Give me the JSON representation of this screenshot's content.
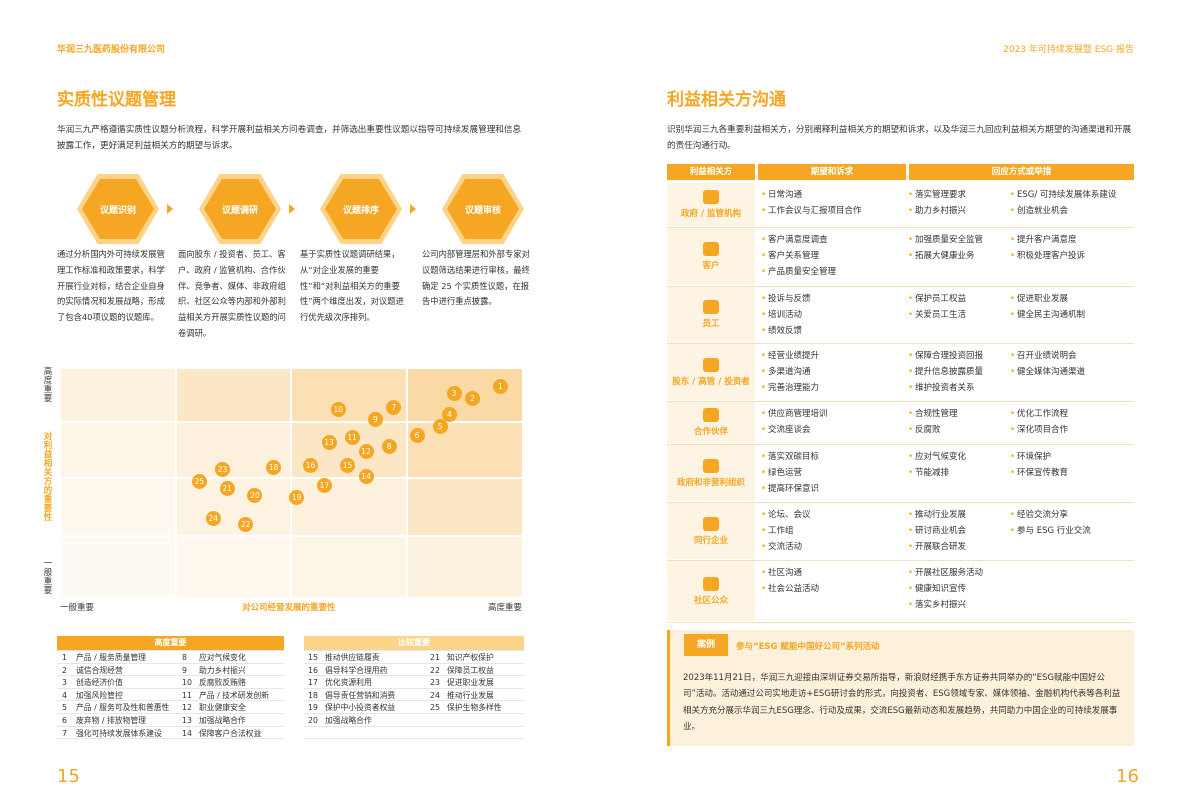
{
  "header": {
    "company": "华润三九医药股份有限公司",
    "report": "2023 年可持续发展暨 ESG 报告"
  },
  "left": {
    "title": "实质性议题管理",
    "intro": "华润三九严格遵循实质性议题分析流程，科学开展利益相关方问卷调查，并筛选出重要性议题以指导可持续发展管理和信息披露工作，更好满足利益相关方的期望与诉求。",
    "steps": [
      {
        "label": "议题识别",
        "desc": "通过分析国内外可持续发展管理工作标准和政策要求，科学开展行业对标，结合企业自身的实际情况和发展战略，形成了包含40项议题的议题库。"
      },
      {
        "label": "议题调研",
        "desc": "面向股东 / 投资者、员工、客户、政府 / 监管机构、合作伙伴、竞争者、媒体、非政府组织、社区公众等内部和外部利益相关方开展实质性议题的问卷调研。"
      },
      {
        "label": "议题排序",
        "desc": "基于实质性议题调研结果，从“对企业发展的重要性”和“对利益相关方的重要性”两个维度出发，对议题进行优先级次序排列。"
      },
      {
        "label": "议题审核",
        "desc": "公司内部管理层和外部专家对议题筛选结果进行审核，最终确定 25 个实质性议题，在报告中进行重点披露。"
      }
    ],
    "matrix": {
      "y_top": "高度重要",
      "y_mid": "对利益相关方的重要性",
      "y_bottom": "一般重要",
      "x_left": "一般重要",
      "x_mid": "对公司经营发展的重要性",
      "x_right": "高度重要",
      "points": [
        {
          "n": "1",
          "x": 0.95,
          "y": 0.92
        },
        {
          "n": "2",
          "x": 0.89,
          "y": 0.87
        },
        {
          "n": "3",
          "x": 0.85,
          "y": 0.89
        },
        {
          "n": "4",
          "x": 0.84,
          "y": 0.8
        },
        {
          "n": "5",
          "x": 0.82,
          "y": 0.75
        },
        {
          "n": "6",
          "x": 0.77,
          "y": 0.71
        },
        {
          "n": "7",
          "x": 0.72,
          "y": 0.83
        },
        {
          "n": "8",
          "x": 0.71,
          "y": 0.66
        },
        {
          "n": "9",
          "x": 0.68,
          "y": 0.78
        },
        {
          "n": "10",
          "x": 0.6,
          "y": 0.82
        },
        {
          "n": "11",
          "x": 0.63,
          "y": 0.7
        },
        {
          "n": "12",
          "x": 0.66,
          "y": 0.64
        },
        {
          "n": "13",
          "x": 0.58,
          "y": 0.68
        },
        {
          "n": "14",
          "x": 0.66,
          "y": 0.53
        },
        {
          "n": "15",
          "x": 0.62,
          "y": 0.58
        },
        {
          "n": "16",
          "x": 0.54,
          "y": 0.58
        },
        {
          "n": "17",
          "x": 0.57,
          "y": 0.49
        },
        {
          "n": "18",
          "x": 0.46,
          "y": 0.57
        },
        {
          "n": "19",
          "x": 0.51,
          "y": 0.44
        },
        {
          "n": "20",
          "x": 0.42,
          "y": 0.45
        },
        {
          "n": "21",
          "x": 0.36,
          "y": 0.48
        },
        {
          "n": "22",
          "x": 0.4,
          "y": 0.32
        },
        {
          "n": "23",
          "x": 0.35,
          "y": 0.56
        },
        {
          "n": "24",
          "x": 0.33,
          "y": 0.35
        },
        {
          "n": "25",
          "x": 0.3,
          "y": 0.51
        }
      ]
    },
    "legend": {
      "high_title": "高度重要",
      "compare_title": "比较重要",
      "high": [
        [
          "1",
          "产品 / 服务质量管理"
        ],
        [
          "2",
          "诚信合规经营"
        ],
        [
          "3",
          "创造经济价值"
        ],
        [
          "4",
          "加强风险管控"
        ],
        [
          "5",
          "产品 / 服务可及性和普惠性"
        ],
        [
          "6",
          "废弃物 / 排放物管理"
        ],
        [
          "7",
          "强化可持续发展体系建设"
        ],
        [
          "8",
          "应对气候变化"
        ],
        [
          "9",
          "助力乡村振兴"
        ],
        [
          "10",
          "反腐败反贿赂"
        ],
        [
          "11",
          "产品 / 技术研发创新"
        ],
        [
          "12",
          "职业健康安全"
        ],
        [
          "13",
          "加强战略合作"
        ],
        [
          "14",
          "保障客户合法权益"
        ]
      ],
      "compare": [
        [
          "15",
          "推动供应链履责"
        ],
        [
          "16",
          "倡导科学合理用药"
        ],
        [
          "17",
          "优化资源利用"
        ],
        [
          "18",
          "倡导责任营销和消费"
        ],
        [
          "19",
          "保护中小投资者权益"
        ],
        [
          "20",
          "加强战略合作"
        ],
        [
          "21",
          "知识产权保护"
        ],
        [
          "22",
          "保障员工权益"
        ],
        [
          "23",
          "促进职业发展"
        ],
        [
          "24",
          "推动行业发展"
        ],
        [
          "25",
          "保护生物多样性"
        ]
      ]
    },
    "page": "15"
  },
  "right": {
    "title": "利益相关方沟通",
    "intro": "识别华润三九各重要利益相关方，分别阐释利益相关方的期望和诉求，以及华润三九回应利益相关方期望的沟通渠道和开展的责任沟通行动。",
    "col_headers": [
      "利益相关方",
      "期望和诉求",
      "回应方式或举措"
    ],
    "rows": [
      {
        "name": "政府 / 监管机构",
        "icon": "government-icon",
        "exp": [
          "日常沟通",
          "工作会议与汇报项目合作"
        ],
        "resp1": [
          "落实管理要求",
          "助力乡村振兴"
        ],
        "resp2": [
          "ESG/ 可持续发展体系建设",
          "创造就业机会"
        ]
      },
      {
        "name": "客户",
        "icon": "customer-icon",
        "exp": [
          "客户满意度调查",
          "客户关系管理",
          "产品质量安全管理"
        ],
        "resp1": [
          "加强质量安全监管",
          "拓展大健康业务"
        ],
        "resp2": [
          "提升客户满意度",
          "积极处理客户投诉"
        ]
      },
      {
        "name": "员工",
        "icon": "employee-icon",
        "exp": [
          "投诉与反馈",
          "培训活动",
          "绩效反馈"
        ],
        "resp1": [
          "保护员工权益",
          "关爱员工生活"
        ],
        "resp2": [
          "促进职业发展",
          "健全民主沟通机制"
        ]
      },
      {
        "name": "股东 / 高管 / 投资者",
        "icon": "shareholder-icon",
        "exp": [
          "经营业绩提升",
          "多渠道沟通",
          "完善治理能力"
        ],
        "resp1": [
          "保障合理投资回报",
          "提升信息披露质量",
          "维护投资者关系"
        ],
        "resp2": [
          "召开业绩说明会",
          "健全媒体沟通渠道"
        ]
      },
      {
        "name": "合作伙伴",
        "icon": "partner-icon",
        "exp": [
          "供应商管理培训",
          "交流座谈会"
        ],
        "resp1": [
          "合规性管理",
          "反腐败"
        ],
        "resp2": [
          "优化工作流程",
          "深化项目合作"
        ]
      },
      {
        "name": "政府和非营利组织",
        "icon": "ngo-icon",
        "exp": [
          "落实双碳目标",
          "绿色运营",
          "提高环保意识"
        ],
        "resp1": [
          "应对气候变化",
          "节能减排"
        ],
        "resp2": [
          "环境保护",
          "环保宣传教育"
        ]
      },
      {
        "name": "同行企业",
        "icon": "peer-icon",
        "exp": [
          "论坛、会议",
          "工作组",
          "交流活动"
        ],
        "resp1": [
          "推动行业发展",
          "研讨商业机会",
          "开展联合研发"
        ],
        "resp2": [
          "经验交流分享",
          "参与 ESG 行业交流"
        ]
      },
      {
        "name": "社区公众",
        "icon": "community-icon",
        "exp": [
          "社区沟通",
          "社会公益活动"
        ],
        "resp1": [
          "开展社区服务活动",
          "健康知识宣传",
          "落实乡村振兴"
        ],
        "resp2": []
      }
    ],
    "case": {
      "badge": "案例",
      "title": "参与“ESG 赋能中国好公司”系列活动",
      "text": "2023年11月21日，华润三九迎接由深圳证券交易所指导，新浪财经携手东方证券共同举办的“ESG赋能中国好公司”活动。活动通过公司实地走访+ESG研讨会的形式，向投资者、ESG领域专家、媒体领袖、金融机构代表等各利益相关方充分展示华润三九ESG理念、行动及成果，交流ESG最新动态和发展趋势，共同助力中国企业的可持续发展事业。"
    },
    "page": "16"
  }
}
